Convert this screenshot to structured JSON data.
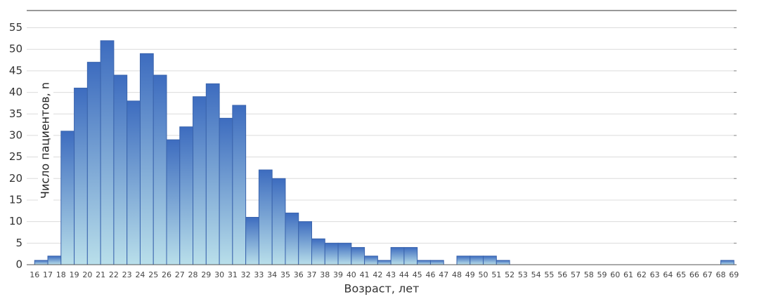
{
  "chart_data": {
    "type": "histogram",
    "xlabel": "Возраст, лет",
    "ylabel": "Число пациентов, n",
    "bins": [
      16,
      17,
      18,
      19,
      20,
      21,
      22,
      23,
      24,
      25,
      26,
      27,
      28,
      29,
      30,
      31,
      32,
      33,
      34,
      35,
      36,
      37,
      38,
      39,
      40,
      41,
      42,
      43,
      44,
      45,
      46,
      47,
      48,
      49,
      50,
      51,
      52,
      53,
      54,
      55,
      56,
      57,
      58,
      59,
      60,
      61,
      62,
      63,
      64,
      65,
      66,
      67,
      68,
      69
    ],
    "values": [
      1,
      2,
      31,
      41,
      47,
      52,
      44,
      38,
      49,
      44,
      29,
      32,
      39,
      42,
      34,
      37,
      11,
      22,
      20,
      12,
      10,
      6,
      5,
      5,
      4,
      2,
      1,
      4,
      4,
      1,
      1,
      0,
      2,
      2,
      2,
      1,
      0,
      0,
      0,
      0,
      0,
      0,
      0,
      0,
      0,
      0,
      0,
      0,
      0,
      0,
      0,
      0,
      1
    ],
    "colors": [
      "#3d6cbf",
      "#b9dfea"
    ],
    "edge_color": "#3a64ad",
    "xlim": [
      15.4,
      69.2
    ],
    "ylim": [
      0,
      59
    ],
    "yticks": [
      0,
      5,
      10,
      15,
      20,
      25,
      30,
      35,
      40,
      45,
      50,
      55
    ],
    "grid": true
  }
}
